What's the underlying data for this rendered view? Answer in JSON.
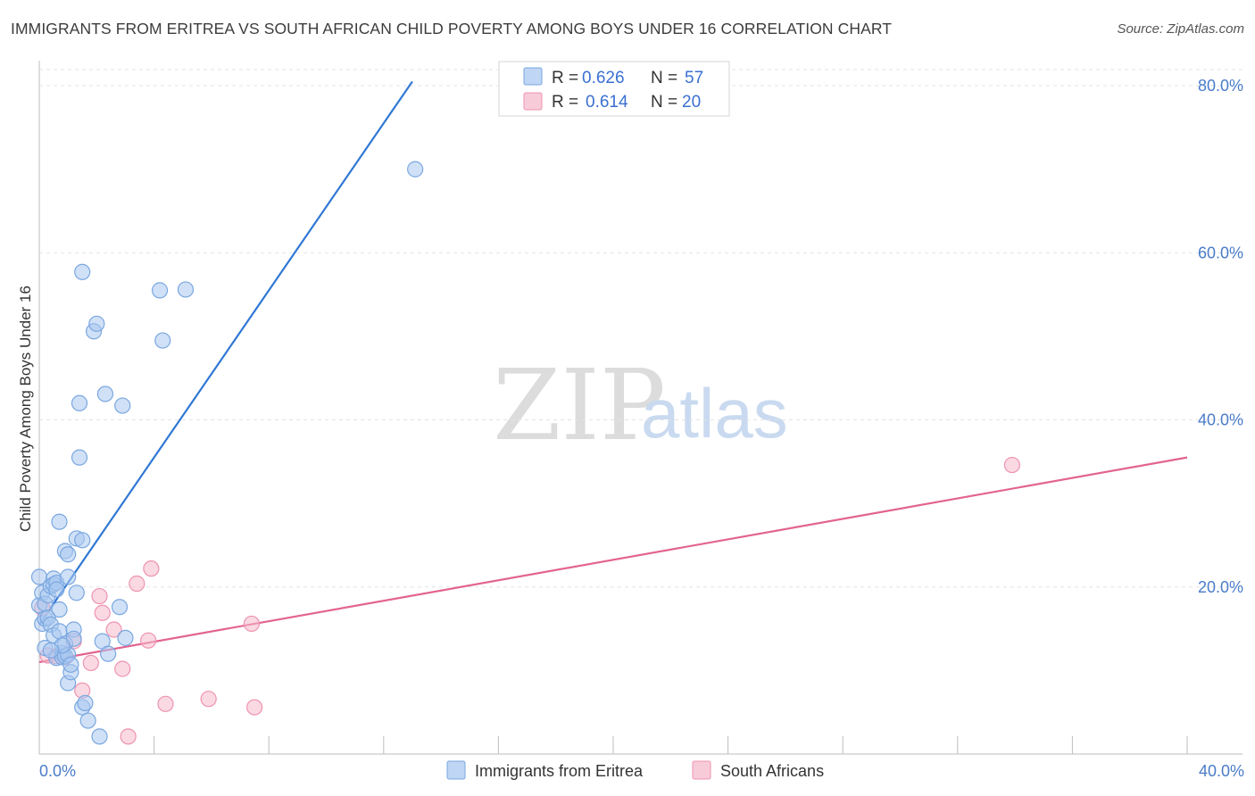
{
  "header": {
    "title": "IMMIGRANTS FROM ERITREA VS SOUTH AFRICAN CHILD POVERTY AMONG BOYS UNDER 16 CORRELATION CHART",
    "source": "Source: ZipAtlas.com"
  },
  "watermark": {
    "part1": "ZIP",
    "part2": "atlas"
  },
  "legend": {
    "rows": [
      {
        "r_label": "R =",
        "r_value": "0.626",
        "n_label": "N =",
        "n_value": "57",
        "color": "#a9c8f0"
      },
      {
        "r_label": "R =",
        "r_value": "0.614",
        "n_label": "N =",
        "n_value": "20",
        "color": "#f6b9cc"
      }
    ]
  },
  "bottom_legend": {
    "series1": "Immigrants from Eritrea",
    "series2": "South Africans"
  },
  "chart_data": {
    "type": "scatter",
    "title": "IMMIGRANTS FROM ERITREA VS SOUTH AFRICAN CHILD POVERTY AMONG BOYS UNDER 16 CORRELATION CHART",
    "xlabel": "",
    "ylabel": "Child Poverty Among Boys Under 16",
    "xlim": [
      0,
      40
    ],
    "ylim": [
      0,
      80
    ],
    "x_tick_labels": [
      "0.0%",
      "40.0%"
    ],
    "y_tick_labels": [
      "20.0%",
      "40.0%",
      "60.0%",
      "80.0%"
    ],
    "y_ticks": [
      20,
      40,
      60,
      80
    ],
    "grid": true,
    "series": [
      {
        "name": "Immigrants from Eritrea",
        "color": "#a9c8f0",
        "stroke": "#7aa7e0",
        "line_color": "#2f78d4",
        "R": 0.626,
        "N": 57,
        "trend": {
          "x": [
            0,
            13.0
          ],
          "y": [
            15.5,
            80.5
          ]
        },
        "points": [
          [
            0.0,
            21.2
          ],
          [
            0.0,
            17.8
          ],
          [
            0.1,
            15.6
          ],
          [
            0.1,
            19.3
          ],
          [
            0.2,
            18.0
          ],
          [
            0.2,
            16.2
          ],
          [
            0.2,
            12.7
          ],
          [
            0.3,
            19.0
          ],
          [
            0.3,
            16.3
          ],
          [
            0.4,
            15.5
          ],
          [
            0.4,
            20.1
          ],
          [
            0.5,
            21.0
          ],
          [
            0.5,
            20.3
          ],
          [
            0.5,
            14.2
          ],
          [
            0.6,
            20.5
          ],
          [
            0.6,
            19.7
          ],
          [
            0.6,
            11.5
          ],
          [
            0.7,
            17.3
          ],
          [
            0.7,
            27.8
          ],
          [
            0.7,
            14.7
          ],
          [
            0.8,
            12.1
          ],
          [
            0.8,
            11.6
          ],
          [
            0.9,
            13.2
          ],
          [
            0.9,
            11.7
          ],
          [
            0.9,
            24.3
          ],
          [
            1.0,
            23.9
          ],
          [
            1.0,
            21.2
          ],
          [
            1.0,
            11.9
          ],
          [
            1.0,
            8.5
          ],
          [
            1.1,
            9.8
          ],
          [
            1.1,
            10.7
          ],
          [
            1.2,
            14.9
          ],
          [
            1.2,
            13.8
          ],
          [
            1.3,
            19.3
          ],
          [
            1.3,
            25.8
          ],
          [
            1.4,
            42.0
          ],
          [
            1.4,
            35.5
          ],
          [
            1.5,
            25.6
          ],
          [
            1.5,
            57.7
          ],
          [
            1.5,
            5.6
          ],
          [
            1.6,
            6.1
          ],
          [
            1.7,
            4.0
          ],
          [
            1.9,
            50.6
          ],
          [
            2.0,
            51.5
          ],
          [
            2.1,
            2.1
          ],
          [
            2.2,
            13.5
          ],
          [
            2.3,
            43.1
          ],
          [
            2.4,
            12.0
          ],
          [
            2.8,
            17.6
          ],
          [
            2.9,
            41.7
          ],
          [
            3.0,
            13.9
          ],
          [
            4.2,
            55.5
          ],
          [
            4.3,
            49.5
          ],
          [
            5.1,
            55.6
          ],
          [
            13.1,
            70.0
          ],
          [
            0.8,
            13.0
          ],
          [
            0.4,
            12.4
          ]
        ]
      },
      {
        "name": "South Africans",
        "color": "#f6b9cc",
        "stroke": "#ee93b0",
        "line_color": "#e2648f",
        "R": 0.614,
        "N": 20,
        "trend": {
          "x": [
            0,
            40
          ],
          "y": [
            11.0,
            35.5
          ]
        },
        "points": [
          [
            0.3,
            11.8
          ],
          [
            0.6,
            11.7
          ],
          [
            0.9,
            11.6
          ],
          [
            1.2,
            13.5
          ],
          [
            1.5,
            7.6
          ],
          [
            1.8,
            10.9
          ],
          [
            2.1,
            18.9
          ],
          [
            2.2,
            16.9
          ],
          [
            2.6,
            14.9
          ],
          [
            2.9,
            10.2
          ],
          [
            3.1,
            2.1
          ],
          [
            3.4,
            20.4
          ],
          [
            3.8,
            13.6
          ],
          [
            3.9,
            22.2
          ],
          [
            4.4,
            6.0
          ],
          [
            5.9,
            6.6
          ],
          [
            7.4,
            15.6
          ],
          [
            7.5,
            5.6
          ],
          [
            33.9,
            34.6
          ],
          [
            0.1,
            17.5
          ]
        ]
      }
    ]
  }
}
